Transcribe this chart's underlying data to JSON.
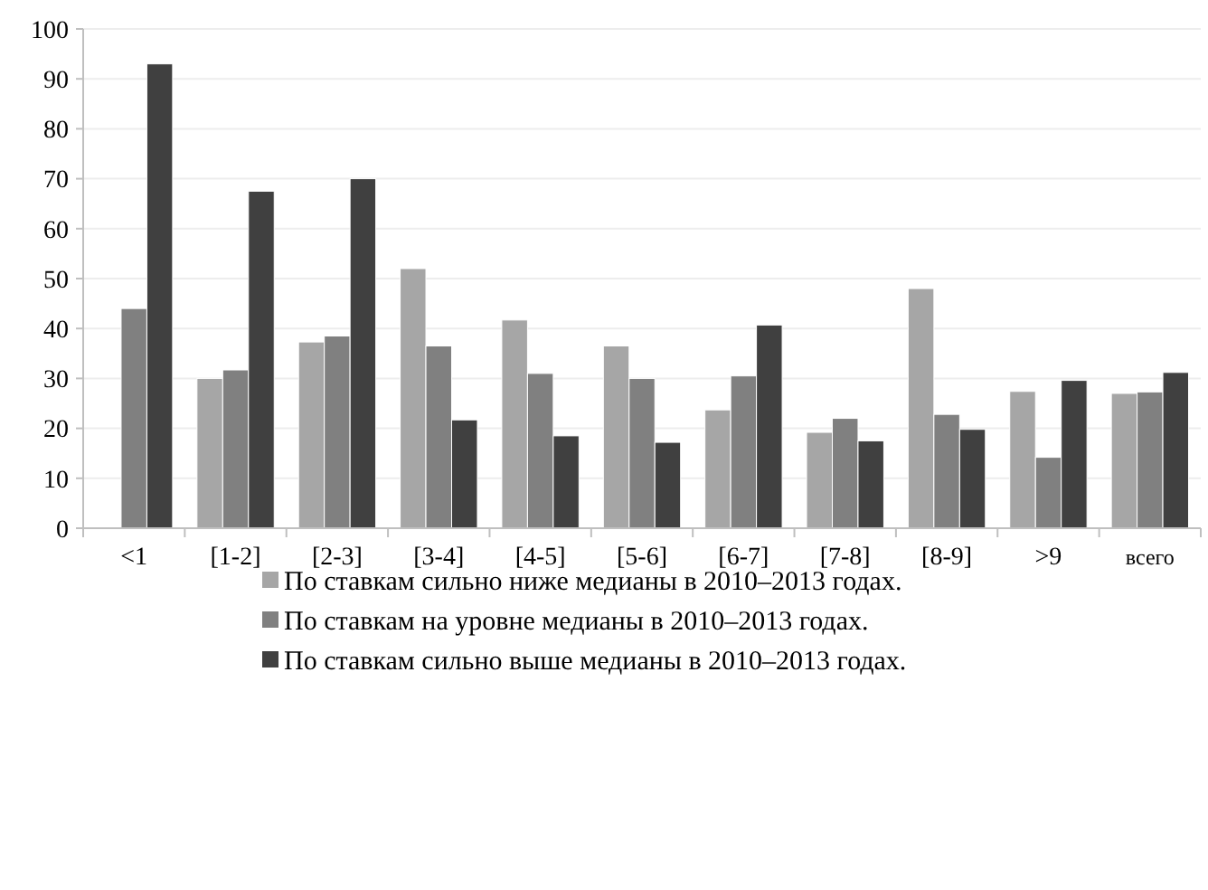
{
  "chart_data": {
    "type": "bar",
    "categories": [
      "<1",
      "[1-2]",
      "[2-3]",
      "[3-4]",
      "[4-5]",
      "[5-6]",
      "[6-7]",
      "[7-8]",
      "[8-9]",
      ">9",
      "всего"
    ],
    "series": [
      {
        "name": "По ставкам сильно ниже медианы в 2010–2013 годах.",
        "color": "#a6a6a6",
        "values": [
          null,
          30,
          37.3,
          52,
          41.7,
          36.5,
          23.7,
          19.2,
          48,
          27.4,
          27
        ]
      },
      {
        "name": "По ставкам на уровне медианы в 2010–2013 годах.",
        "color": "#808080",
        "values": [
          44,
          31.7,
          38.5,
          36.5,
          31,
          30,
          30.5,
          22,
          22.8,
          14.2,
          27.3
        ]
      },
      {
        "name": "По ставкам сильно выше медианы в 2010–2013 годах.",
        "color": "#404040",
        "values": [
          93,
          67.5,
          70,
          21.7,
          18.5,
          17.2,
          40.7,
          17.5,
          19.8,
          29.6,
          31.2
        ]
      }
    ],
    "ylim": [
      0,
      100
    ],
    "yticks": [
      0,
      10,
      20,
      30,
      40,
      50,
      60,
      70,
      80,
      90,
      100
    ],
    "grid": "y",
    "legend": "bottom"
  }
}
